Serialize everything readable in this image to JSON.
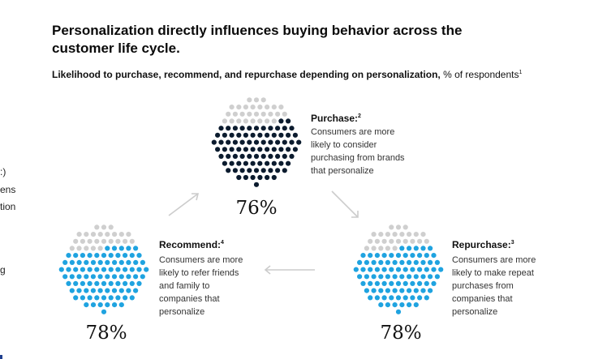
{
  "title": "Personalization directly influences buying behavior across the customer life cycle.",
  "subtitle": {
    "bold": "Likelihood to purchase, recommend, and repurchase depending on personalization,",
    "rest": " % of respondents",
    "footnote": "1"
  },
  "left_fragments": [
    ":)",
    "ens",
    "tion",
    "g"
  ],
  "colors": {
    "empty_dot": "#cfcfcf",
    "purchase": "#0b1b2e",
    "recommend": "#1fa3e0",
    "repurchase": "#1fa3e0",
    "arrow": "#cccccc"
  },
  "chart_data": {
    "type": "dot-circle",
    "title": "Likelihood to purchase, recommend, and repurchase depending on personalization",
    "unit": "% of respondents",
    "items": [
      {
        "name": "Purchase",
        "footnote": "2",
        "value": 76,
        "value_label": "76%",
        "description": [
          "Consumers are more",
          "likely to consider",
          "purchasing from brands",
          "that personalize"
        ]
      },
      {
        "name": "Recommend",
        "footnote": "4",
        "value": 78,
        "value_label": "78%",
        "description": [
          "Consumers are more",
          "likely to refer friends",
          "and family to",
          "companies that",
          "personalize"
        ]
      },
      {
        "name": "Repurchase",
        "footnote": "3",
        "value": 78,
        "value_label": "78%",
        "description": [
          "Consumers are more",
          "likely to make repeat",
          "purchases from",
          "companies that",
          "personalize"
        ]
      }
    ],
    "flow": [
      "Recommend",
      "Purchase",
      "Repurchase",
      "Recommend"
    ]
  }
}
